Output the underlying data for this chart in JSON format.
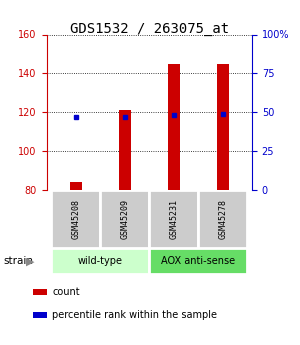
{
  "title": "GDS1532 / 263075_at",
  "samples": [
    "GSM45208",
    "GSM45209",
    "GSM45231",
    "GSM45278"
  ],
  "bar_bottom": 80,
  "bar_tops": [
    84,
    121,
    145,
    145
  ],
  "percentile_values": [
    47,
    47,
    48,
    49
  ],
  "ylim_left": [
    80,
    160
  ],
  "ylim_right": [
    0,
    100
  ],
  "yticks_left": [
    80,
    100,
    120,
    140,
    160
  ],
  "yticks_right": [
    0,
    25,
    50,
    75,
    100
  ],
  "yticklabels_right": [
    "0",
    "25",
    "50",
    "75",
    "100%"
  ],
  "bar_color": "#cc0000",
  "percentile_color": "#0000cc",
  "bar_width": 0.25,
  "groups": [
    {
      "label": "wild-type",
      "samples": [
        0,
        1
      ],
      "color": "#ccffcc"
    },
    {
      "label": "AOX anti-sense",
      "samples": [
        2,
        3
      ],
      "color": "#66dd66"
    }
  ],
  "strain_label": "strain",
  "legend_items": [
    {
      "color": "#cc0000",
      "label": "count"
    },
    {
      "color": "#0000cc",
      "label": "percentile rank within the sample"
    }
  ],
  "sample_box_color": "#cccccc",
  "left_axis_color": "#cc0000",
  "right_axis_color": "#0000cc",
  "title_fontsize": 10,
  "tick_fontsize": 7,
  "legend_fontsize": 7
}
